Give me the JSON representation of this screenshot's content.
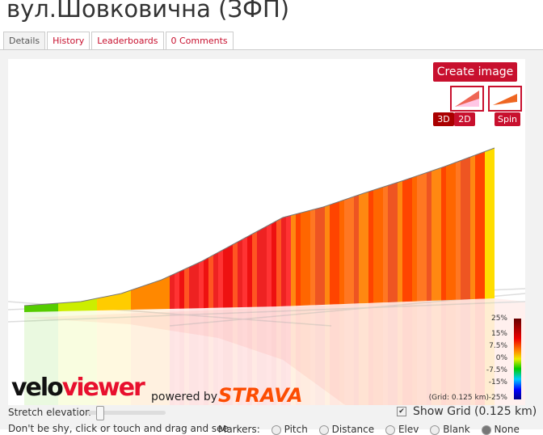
{
  "title": "вул.Шовковична (ЗФП)",
  "tabs": [
    {
      "label": "Details",
      "active": true
    },
    {
      "label": "History"
    },
    {
      "label": "Leaderboards"
    },
    {
      "label": "0 Comments"
    }
  ],
  "toolbar": {
    "create_image": "Create image",
    "btn_3d": "3D",
    "btn_2d": "2D",
    "spin": "Spin"
  },
  "legend": {
    "labels": [
      "25%",
      "15%",
      "7.5%",
      "0%",
      "-7.5%",
      "-15%",
      "-25%"
    ],
    "grid_note": "(Grid: 0.125 km)"
  },
  "branding": {
    "logo_velo": "velo",
    "logo_viewer": "viewer",
    "powered_by": "powered by",
    "strava": "STRAVA"
  },
  "controls": {
    "stretch_label": "Stretch elevation",
    "show_grid_label": "Show Grid (0.125 km)",
    "show_grid_checked": true,
    "hint": "Don't be shy, click or touch and drag and see",
    "mode_label": "Markers:",
    "radios": [
      {
        "label": "Pitch"
      },
      {
        "label": "Distance"
      },
      {
        "label": "Elev"
      },
      {
        "label": "Blank"
      },
      {
        "label": "None",
        "checked": true
      }
    ]
  },
  "colors": {
    "accent": "#c8102e"
  }
}
